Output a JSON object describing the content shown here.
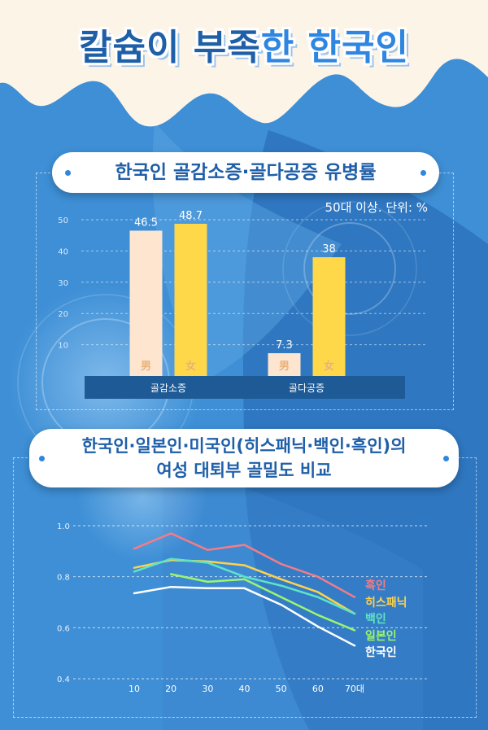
{
  "header": {
    "title_part1": "칼슘이 부족",
    "title_part2": "한 한국인"
  },
  "section1": {
    "title": "한국인 골감소증·골다공증 유병률",
    "unit_note": "50대 이상. 단위: %"
  },
  "section2": {
    "title_line1": "한국인·일본인·미국인(히스패닉·백인·흑인)의",
    "title_line2": "여성 대퇴부 골밀도 비교"
  },
  "colors": {
    "male_bar": "#fde5cf",
    "female_bar": "#ffd84a",
    "category_band": "#1d5a96",
    "background": "#3e8fd6"
  },
  "chart_data": [
    {
      "type": "bar",
      "categories": [
        "골감소증",
        "골다공증"
      ],
      "series": [
        {
          "name": "男",
          "values": [
            46.5,
            7.3
          ]
        },
        {
          "name": "女",
          "values": [
            48.7,
            38
          ]
        }
      ],
      "yticks": [
        10,
        20,
        30,
        40,
        50
      ],
      "ylim": [
        0,
        50
      ],
      "grid": true
    },
    {
      "type": "line",
      "x": [
        10,
        20,
        30,
        40,
        50,
        60,
        70
      ],
      "xtick_labels": [
        "10",
        "20",
        "30",
        "40",
        "50",
        "60",
        "70대"
      ],
      "yticks": [
        "1.0",
        "0.8",
        "0.6",
        "0.4"
      ],
      "ylim": [
        0.4,
        1.0
      ],
      "series": [
        {
          "name": "흑인",
          "color": "#f47c86",
          "values": [
            0.91,
            0.97,
            0.905,
            0.925,
            0.85,
            0.8,
            0.72
          ]
        },
        {
          "name": "히스패닉",
          "color": "#ffd24a",
          "values": [
            0.835,
            0.865,
            0.86,
            0.845,
            0.79,
            0.74,
            0.655
          ]
        },
        {
          "name": "백인",
          "color": "#5fe3c5",
          "values": [
            0.82,
            0.87,
            0.855,
            0.8,
            0.765,
            0.72,
            0.655
          ]
        },
        {
          "name": "일본인",
          "color": "#9cf56e",
          "values": [
            null,
            0.81,
            0.78,
            0.79,
            0.72,
            0.65,
            0.59
          ]
        },
        {
          "name": "한국인",
          "color": "#ffffff",
          "values": [
            0.735,
            0.76,
            0.755,
            0.755,
            0.69,
            0.605,
            0.53
          ]
        }
      ],
      "grid": true
    }
  ]
}
